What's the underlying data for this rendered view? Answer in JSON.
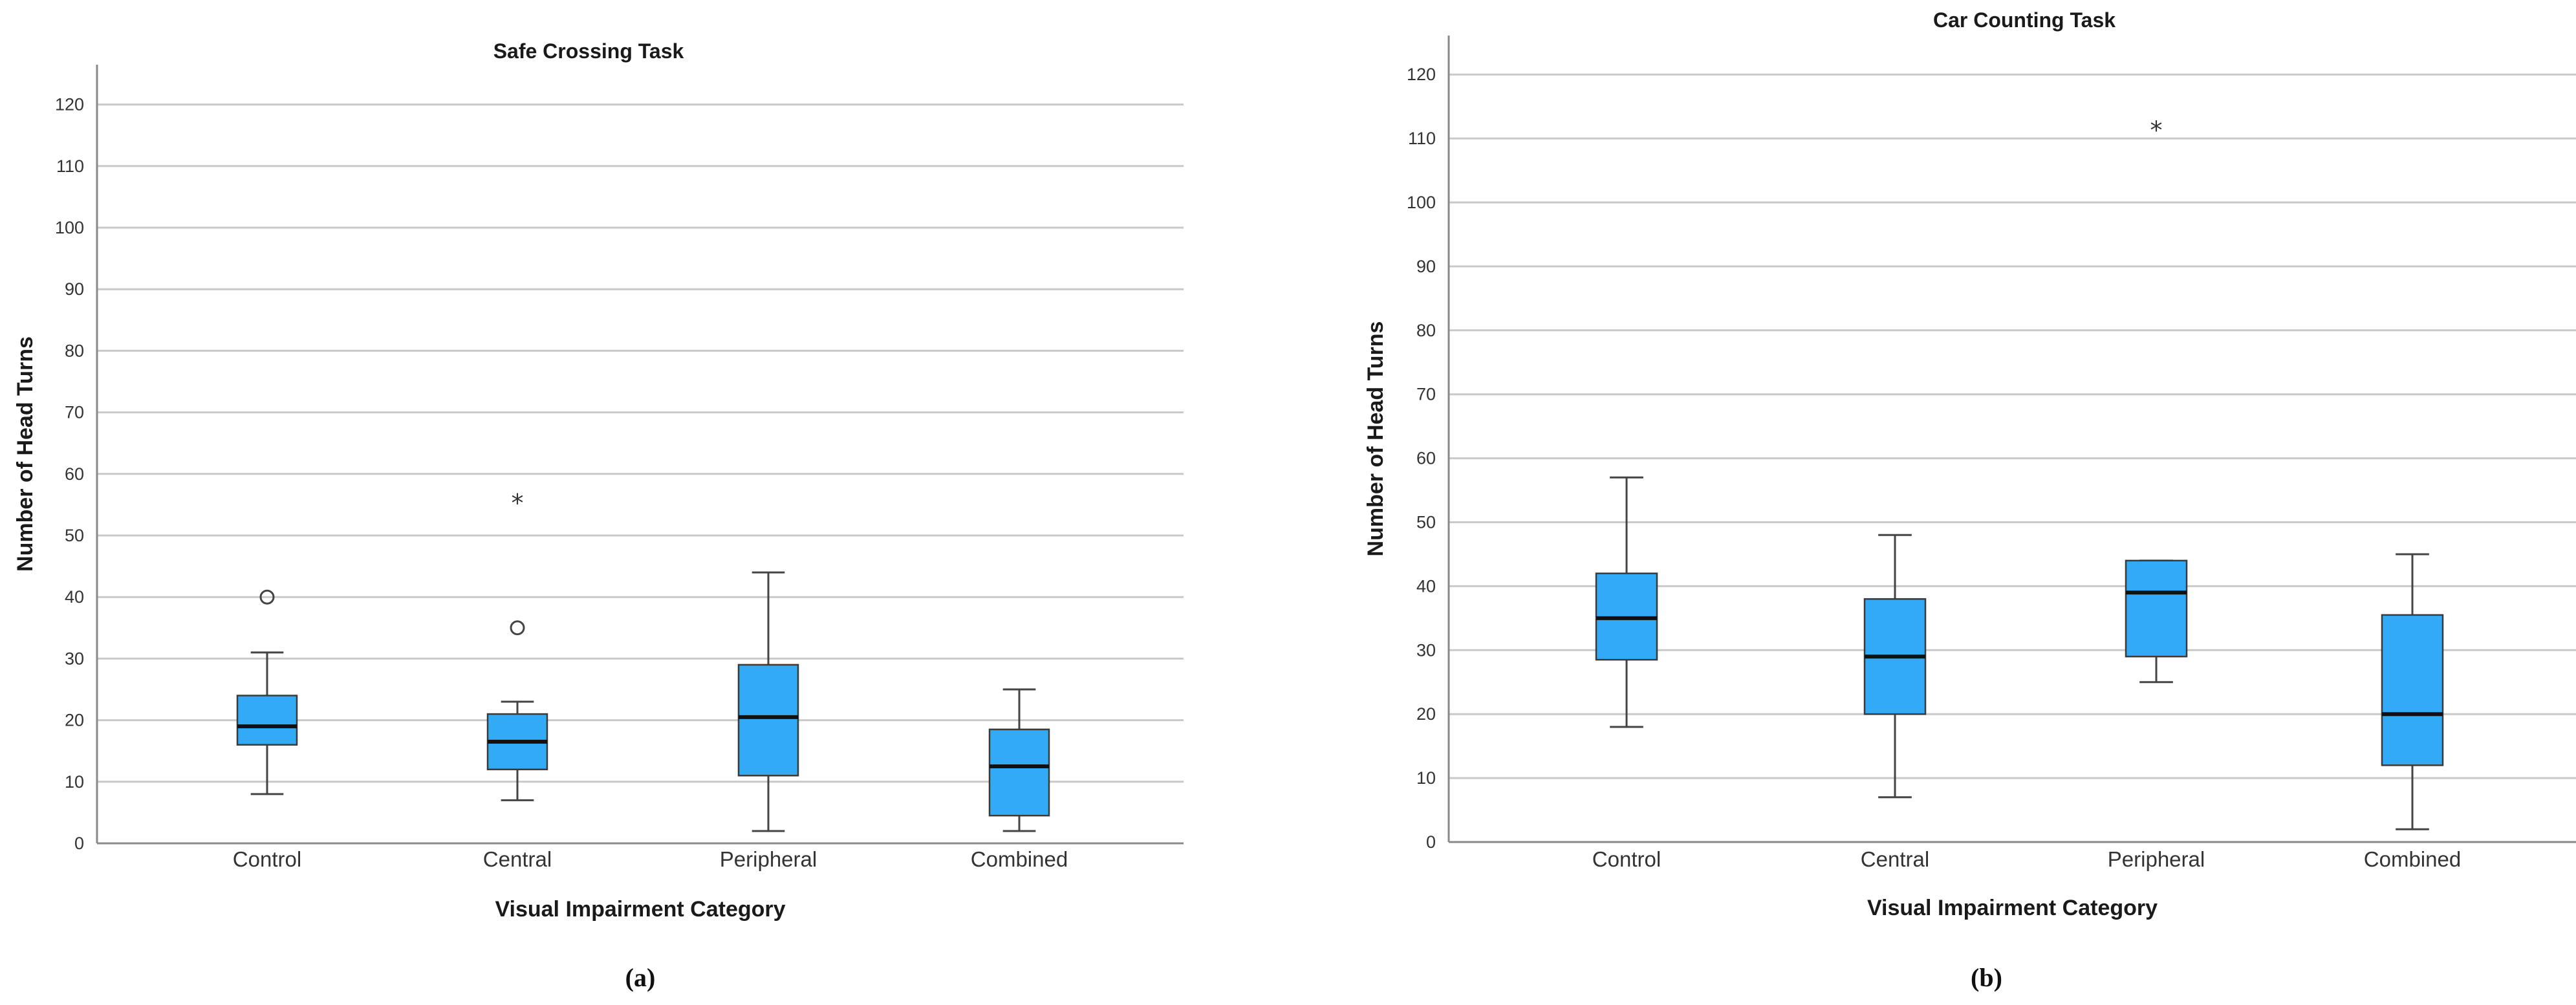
{
  "colors": {
    "box_fill": "#33aaf5",
    "grid": "#c9c9c9"
  },
  "chart_data": [
    {
      "type": "boxplot",
      "title": "Safe Crossing Task",
      "xlabel": "Visual Impairment Category",
      "ylabel": "Number of Head Turns",
      "panel_label": "(a)",
      "ylim": [
        0,
        130
      ],
      "yticks": [
        0,
        10,
        20,
        30,
        40,
        50,
        60,
        70,
        80,
        90,
        100,
        110,
        120
      ],
      "grid": "horizontal",
      "categories": [
        "Control",
        "Central",
        "Peripheral",
        "Combined"
      ],
      "boxes": [
        {
          "min": 8,
          "q1": 16,
          "median": 19,
          "q3": 24,
          "max": 31,
          "outliers": [
            {
              "value": 40,
              "marker": "circle"
            }
          ]
        },
        {
          "min": 7,
          "q1": 12,
          "median": 16.5,
          "q3": 21,
          "max": 23,
          "outliers": [
            {
              "value": 35,
              "marker": "circle"
            },
            {
              "value": 56,
              "marker": "star"
            }
          ]
        },
        {
          "min": 2,
          "q1": 11,
          "median": 20.5,
          "q3": 29,
          "max": 44,
          "outliers": []
        },
        {
          "min": 2,
          "q1": 4.5,
          "median": 12.5,
          "q3": 18.5,
          "max": 25,
          "outliers": []
        }
      ]
    },
    {
      "type": "boxplot",
      "title": "Car Counting Task",
      "xlabel": "Visual Impairment Category",
      "ylabel": "Number of Head Turns",
      "panel_label": "(b)",
      "ylim": [
        0,
        126
      ],
      "yticks": [
        0,
        10,
        20,
        30,
        40,
        50,
        60,
        70,
        80,
        90,
        100,
        110,
        120
      ],
      "grid": "horizontal",
      "categories": [
        "Control",
        "Central",
        "Peripheral",
        "Combined"
      ],
      "boxes": [
        {
          "min": 18,
          "q1": 28.5,
          "median": 35,
          "q3": 42,
          "max": 57,
          "outliers": []
        },
        {
          "min": 7,
          "q1": 20,
          "median": 29,
          "q3": 38,
          "max": 48,
          "outliers": []
        },
        {
          "min": 25,
          "q1": 29,
          "median": 39,
          "q3": 44,
          "max": 44,
          "outliers": [
            {
              "value": 112,
              "marker": "star"
            }
          ]
        },
        {
          "min": 2,
          "q1": 12,
          "median": 20,
          "q3": 35.5,
          "max": 45,
          "outliers": []
        }
      ]
    }
  ]
}
